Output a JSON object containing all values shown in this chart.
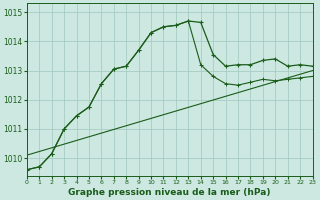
{
  "title": "Graphe pression niveau de la mer (hPa)",
  "bg_color": "#cce8e0",
  "grid_color": "#a8ccc4",
  "line_color": "#1a5c1a",
  "xlim": [
    0,
    23
  ],
  "ylim": [
    1009.4,
    1015.3
  ],
  "yticks": [
    1010,
    1011,
    1012,
    1013,
    1014,
    1015
  ],
  "xticks": [
    0,
    1,
    2,
    3,
    4,
    5,
    6,
    7,
    8,
    9,
    10,
    11,
    12,
    13,
    14,
    15,
    16,
    17,
    18,
    19,
    20,
    21,
    22,
    23
  ],
  "curve1_x": [
    0,
    1,
    2,
    3,
    4,
    5,
    6,
    7,
    8,
    9,
    10,
    11,
    12,
    13,
    14,
    15,
    16,
    17,
    18,
    19,
    20,
    21,
    22,
    23
  ],
  "curve1_y": [
    1009.6,
    1009.7,
    1010.15,
    1011.0,
    1011.45,
    1011.75,
    1012.55,
    1013.05,
    1013.15,
    1013.7,
    1014.3,
    1014.5,
    1014.55,
    1014.7,
    1014.65,
    1013.55,
    1013.15,
    1013.2,
    1013.2,
    1013.35,
    1013.4,
    1013.15,
    1013.2,
    1013.15
  ],
  "curve2_x": [
    0,
    1,
    2,
    3,
    4,
    5,
    6,
    7,
    8,
    9,
    10,
    11,
    12,
    13,
    14,
    15,
    16,
    17,
    18,
    19,
    20,
    21,
    22,
    23
  ],
  "curve2_y": [
    1009.6,
    1009.7,
    1010.15,
    1011.0,
    1011.45,
    1011.75,
    1012.55,
    1013.05,
    1013.15,
    1013.7,
    1014.3,
    1014.5,
    1014.55,
    1014.7,
    1013.2,
    1012.8,
    1012.55,
    1012.5,
    1012.6,
    1012.7,
    1012.65,
    1012.7,
    1012.75,
    1012.8
  ],
  "trend_x": [
    0,
    23
  ],
  "trend_y": [
    1010.1,
    1013.0
  ],
  "title_fontsize": 6.5
}
